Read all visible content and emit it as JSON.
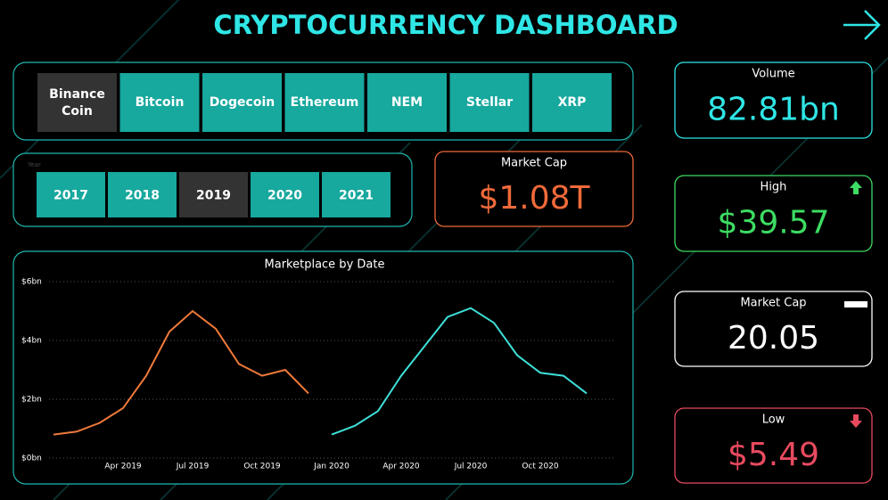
{
  "header": {
    "title": "CRYPTOCURRENCY DASHBOARD"
  },
  "coin_slicer": {
    "options": [
      {
        "label": "Binance Coin",
        "selected": true
      },
      {
        "label": "Bitcoin",
        "selected": false
      },
      {
        "label": "Dogecoin",
        "selected": false
      },
      {
        "label": "Ethereum",
        "selected": false
      },
      {
        "label": "NEM",
        "selected": false
      },
      {
        "label": "Stellar",
        "selected": false
      },
      {
        "label": "XRP",
        "selected": false
      }
    ]
  },
  "year_slicer": {
    "label": "Year",
    "options": [
      {
        "label": "2017",
        "selected": false
      },
      {
        "label": "2018",
        "selected": false
      },
      {
        "label": "2019",
        "selected": true
      },
      {
        "label": "2020",
        "selected": false
      },
      {
        "label": "2021",
        "selected": false
      }
    ]
  },
  "cards": [
    {
      "title": "Market Cap",
      "value": "$1.08T",
      "color": "#f06a3a"
    },
    {
      "title": "Volume",
      "value": "82.81bn",
      "color": "#2fe6e6"
    },
    {
      "title": "High",
      "value": "$39.57",
      "color": "#3ddc62"
    },
    {
      "title": "Market Cap",
      "value": "20.05",
      "color": "#ffffff"
    },
    {
      "title": "Low",
      "value": "$5.49",
      "color": "#e84a5f"
    }
  ],
  "chart_data": {
    "type": "line",
    "title": "Marketplace by Date",
    "categories": [
      null,
      null,
      null,
      "Apr 2019",
      null,
      null,
      "Jul 2019",
      null,
      null,
      "Oct 2019",
      null,
      null,
      "Jan 2020",
      null,
      null,
      "Apr 2020",
      null,
      null,
      "Jul 2020",
      null,
      null,
      "Oct 2020",
      null,
      null
    ],
    "series": [
      {
        "color": "#f07a3a",
        "values": [
          0.8,
          0.9,
          1.2,
          1.7,
          2.8,
          4.3,
          5.0,
          4.4,
          3.2,
          2.8,
          3.0,
          2.2,
          null,
          null,
          null,
          null,
          null,
          null,
          null,
          null,
          null,
          null,
          null,
          null
        ]
      },
      {
        "color": "#3ee0d8",
        "values": [
          null,
          null,
          null,
          null,
          null,
          null,
          null,
          null,
          null,
          null,
          null,
          null,
          0.8,
          1.1,
          1.6,
          2.8,
          3.8,
          4.8,
          5.1,
          4.6,
          3.5,
          2.9,
          2.8,
          2.2
        ]
      }
    ],
    "ylim": [
      0,
      6
    ],
    "yticks": [
      {
        "value": 0,
        "label": "$0bn"
      },
      {
        "value": 2,
        "label": "$2bn"
      },
      {
        "value": 4,
        "label": "$4bn"
      },
      {
        "value": 6,
        "label": "$6bn"
      }
    ],
    "grid": true
  }
}
